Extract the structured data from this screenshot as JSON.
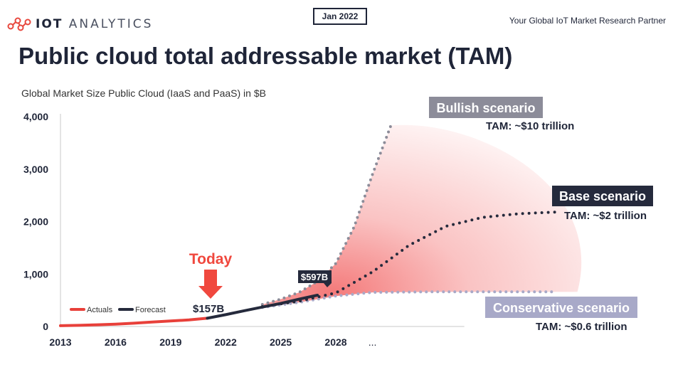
{
  "header": {
    "logo_text_bold": "IOT",
    "logo_text_light": "ANALYTICS",
    "date": "Jan 2022",
    "partner": "Your Global IoT Market Research Partner"
  },
  "colors": {
    "actuals": "#e8403a",
    "forecast": "#252a3c",
    "bullish": "#8c8c99",
    "conservative": "#a8a9c8",
    "fan": "#f47a7a",
    "today": "#f0483e"
  },
  "chart_data": {
    "type": "line",
    "title": "Public cloud total addressable market (TAM)",
    "subtitle": "Global Market Size Public Cloud (IaaS and PaaS) in $B",
    "x_tick_labels": [
      "2013",
      "2016",
      "2019",
      "2022",
      "2025",
      "2028",
      "..."
    ],
    "ylim": [
      0,
      4000
    ],
    "y_ticks": [
      0,
      1000,
      2000,
      3000,
      4000
    ],
    "y_tick_labels": [
      "0",
      "1,000",
      "2,000",
      "3,000",
      "4,000"
    ],
    "grid": false,
    "legend_position": "bottom-left",
    "legend": [
      "Actuals",
      "Forecast"
    ],
    "series": [
      {
        "name": "Actuals",
        "style": "solid",
        "x": [
          2013,
          2014,
          2015,
          2016,
          2017,
          2018,
          2019,
          2020,
          2021
        ],
        "y": [
          15,
          22,
          32,
          45,
          62,
          85,
          105,
          125,
          157
        ]
      },
      {
        "name": "Forecast",
        "style": "solid",
        "x": [
          2021,
          2022,
          2023,
          2024,
          2025,
          2026,
          2027
        ],
        "y": [
          157,
          225,
          300,
          370,
          440,
          520,
          597
        ]
      },
      {
        "style": "dotted",
        "x": [
          2024,
          2025,
          2026,
          2027,
          2028,
          2029,
          2030,
          2031
        ],
        "y": [
          420,
          520,
          650,
          860,
          1200,
          1900,
          2900,
          3830
        ]
      },
      {
        "style": "dotted",
        "x": [
          2024,
          2026,
          2028,
          2030,
          2032,
          2034,
          2036,
          2038,
          2040
        ],
        "y": [
          380,
          480,
          640,
          1040,
          1550,
          1910,
          2080,
          2150,
          2180
        ]
      },
      {
        "style": "dotted",
        "x": [
          2024,
          2026,
          2028,
          2030,
          2033,
          2036,
          2040
        ],
        "y": [
          360,
          460,
          580,
          650,
          660,
          660,
          660
        ]
      }
    ],
    "annotations": {
      "today_label": "Today",
      "actual_value": "$157B",
      "forecast_value": "$597B",
      "bullish_label": "Bullish scenario",
      "bullish_tam": "TAM: ~$10 trillion",
      "base_label": "Base scenario",
      "base_tam": "TAM: ~$2 trillion",
      "conservative_label": "Conservative scenario",
      "conservative_tam": "TAM: ~$0.6 trillion"
    }
  }
}
